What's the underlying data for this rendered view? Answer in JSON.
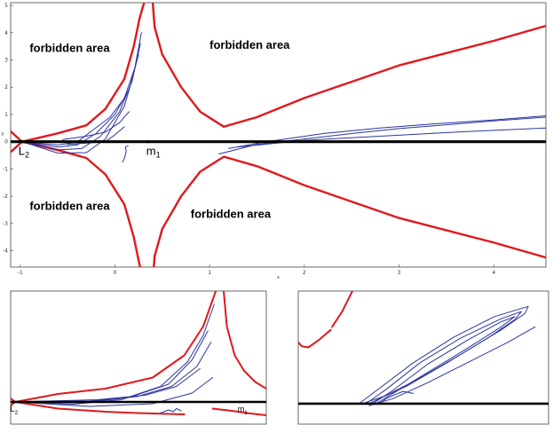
{
  "colors": {
    "boundary": "#e0191d",
    "orbit": "#2b35a0",
    "axis_line": "#000000",
    "frame": "#444444"
  },
  "chart_data": [
    {
      "type": "line",
      "panel": "top",
      "xlabel": "x",
      "ylabel": "y",
      "xlim": [
        -1.1,
        4.55
      ],
      "ylim": [
        -4.6,
        5.1
      ],
      "xticks": [
        "-1",
        "0",
        "1",
        "2",
        "3",
        "4"
      ],
      "yticks": [
        "5",
        "4",
        "3",
        "2",
        "1",
        "0",
        "-1",
        "-2",
        "-3",
        "-4"
      ],
      "regions": [
        "forbidden area",
        "forbidden area",
        "forbidden area",
        "forbidden area"
      ],
      "points": [
        {
          "name_main": "L",
          "name_sub": "2",
          "x": -0.98,
          "y": 0
        },
        {
          "name_main": "m",
          "name_sub": "1",
          "x": 0.35,
          "y": 0
        }
      ],
      "series": [
        {
          "name": "",
          "role": "zero-velocity curve",
          "x": [
            -1.1,
            -0.98,
            -0.6,
            -0.3,
            -0.1,
            0.1,
            0.2,
            0.26,
            0.3,
            0.31
          ],
          "y": [
            -0.38,
            0,
            0.31,
            0.6,
            1.2,
            2.3,
            3.5,
            4.5,
            5.0,
            5.1
          ]
        },
        {
          "name": "",
          "role": "zero-velocity curve",
          "x": [
            -1.1,
            -0.98,
            -0.6,
            -0.3,
            -0.1,
            0.1,
            0.2,
            0.26,
            0.3,
            0.31
          ],
          "y": [
            0.38,
            0,
            -0.31,
            -0.6,
            -1.2,
            -2.3,
            -3.5,
            -4.5,
            -5.0,
            -5.1
          ]
        },
        {
          "name": "",
          "role": "zero-velocity curve",
          "x": [
            0.4,
            0.42,
            0.5,
            0.7,
            0.9,
            1.15,
            1.5,
            2.0,
            3.0,
            4.0,
            4.55
          ],
          "y": [
            5.1,
            4.2,
            3.2,
            2.0,
            1.1,
            0.55,
            0.9,
            1.6,
            2.8,
            3.7,
            4.25
          ]
        },
        {
          "name": "",
          "role": "zero-velocity curve",
          "x": [
            0.4,
            0.42,
            0.5,
            0.7,
            0.9,
            1.15,
            1.5,
            2.0,
            3.0,
            4.0,
            4.55
          ],
          "y": [
            -5.1,
            -4.2,
            -3.2,
            -2.0,
            -1.1,
            -0.55,
            -0.9,
            -1.6,
            -2.8,
            -3.7,
            -4.25
          ]
        },
        {
          "name": "",
          "role": "orbit",
          "x": [
            -0.98,
            -0.6,
            -0.3,
            -0.1,
            0.1,
            0.2,
            0.28
          ],
          "y": [
            0,
            -0.42,
            -0.4,
            0.1,
            1.3,
            2.5,
            4.0
          ]
        },
        {
          "name": "",
          "role": "orbit",
          "x": [
            -0.98,
            -0.6,
            -0.35,
            -0.15,
            0.05,
            0.18,
            0.27
          ],
          "y": [
            0,
            -0.3,
            -0.25,
            0.2,
            1.1,
            2.2,
            3.6
          ]
        },
        {
          "name": "",
          "role": "orbit",
          "x": [
            -0.98,
            -0.6,
            -0.4,
            -0.2,
            0.0,
            0.15,
            0.25
          ],
          "y": [
            0,
            -0.2,
            -0.12,
            0.3,
            1.0,
            1.9,
            3.2
          ]
        },
        {
          "name": "",
          "role": "orbit",
          "x": [
            -0.98,
            -0.6,
            -0.4,
            -0.25,
            -0.05,
            0.1,
            0.22
          ],
          "y": [
            0,
            -0.12,
            -0.02,
            0.38,
            0.9,
            1.6,
            2.8
          ]
        },
        {
          "name": "",
          "role": "orbit",
          "x": [
            -0.55,
            -0.3,
            -0.1,
            0.05,
            0.15
          ],
          "y": [
            0.08,
            0.2,
            0.35,
            0.7,
            1.1
          ]
        },
        {
          "name": "",
          "role": "orbit",
          "x": [
            -0.5,
            -0.3,
            -0.1,
            0.0,
            0.1
          ],
          "y": [
            -0.1,
            -0.05,
            0.0,
            0.25,
            0.55
          ]
        },
        {
          "name": "",
          "role": "orbit",
          "x": [
            1.1,
            1.5,
            2.0,
            2.5,
            3.0,
            3.5,
            4.0,
            4.55
          ],
          "y": [
            -0.45,
            -0.1,
            0.1,
            0.3,
            0.48,
            0.62,
            0.76,
            0.9
          ]
        },
        {
          "name": "",
          "role": "orbit",
          "x": [
            1.2,
            1.6,
            2.2,
            2.8,
            3.4,
            4.0,
            4.55
          ],
          "y": [
            -0.25,
            0.0,
            0.3,
            0.5,
            0.66,
            0.8,
            0.95
          ]
        },
        {
          "name": "",
          "role": "orbit",
          "x": [
            1.3,
            2.0,
            2.8,
            3.6,
            4.55
          ],
          "y": [
            -0.2,
            0.05,
            0.2,
            0.35,
            0.5
          ]
        },
        {
          "name": "",
          "role": "orbit",
          "x": [
            0.08,
            0.1,
            0.12,
            0.11,
            0.14
          ],
          "y": [
            -0.75,
            -0.62,
            -0.35,
            -0.2,
            -0.15
          ]
        }
      ]
    },
    {
      "type": "line",
      "panel": "bottom-left",
      "xlabel": "",
      "ylabel": "",
      "xlim": [
        -1.0,
        0.62
      ],
      "ylim": [
        -0.5,
        2.5
      ],
      "points": [
        {
          "name_main": "L",
          "name_sub": "2",
          "x": -0.98,
          "y": 0
        },
        {
          "name_main": "m",
          "name_sub": "1",
          "x": 0.45,
          "y": 0
        }
      ],
      "series": [
        {
          "name": "",
          "role": "zero-velocity curve",
          "x": [
            -1.0,
            -0.97,
            -0.7,
            -0.4,
            -0.1,
            0.1,
            0.22,
            0.3
          ],
          "y": [
            -0.08,
            0,
            0.18,
            0.3,
            0.55,
            1.05,
            1.7,
            2.5
          ]
        },
        {
          "name": "",
          "role": "zero-velocity curve",
          "x": [
            -1.0,
            -0.97,
            -0.7,
            -0.4,
            -0.2,
            0.0,
            0.1
          ],
          "y": [
            0.08,
            0,
            -0.15,
            -0.22,
            -0.25,
            -0.27,
            -0.28
          ]
        },
        {
          "name": "",
          "role": "zero-velocity curve",
          "x": [
            0.35,
            0.37,
            0.42,
            0.48,
            0.55,
            0.62
          ],
          "y": [
            2.5,
            1.7,
            1.05,
            0.7,
            0.45,
            0.3
          ]
        },
        {
          "name": "",
          "role": "zero-velocity curve",
          "x": [
            0.28,
            0.4,
            0.52,
            0.62
          ],
          "y": [
            -0.15,
            -0.2,
            -0.26,
            -0.3
          ]
        },
        {
          "name": "",
          "role": "orbit",
          "x": [
            -0.98,
            -0.6,
            -0.3,
            -0.05,
            0.12,
            0.22,
            0.29
          ],
          "y": [
            0,
            -0.05,
            0.05,
            0.35,
            0.9,
            1.5,
            2.2
          ]
        },
        {
          "name": "",
          "role": "orbit",
          "x": [
            -0.98,
            -0.55,
            -0.25,
            0.0,
            0.15,
            0.25
          ],
          "y": [
            0,
            -0.02,
            0.1,
            0.4,
            0.95,
            1.6
          ]
        },
        {
          "name": "",
          "role": "orbit",
          "x": [
            -0.98,
            -0.5,
            -0.2,
            0.02,
            0.18,
            0.27
          ],
          "y": [
            0,
            0.02,
            0.12,
            0.35,
            0.8,
            1.35
          ]
        },
        {
          "name": "",
          "role": "orbit",
          "x": [
            -0.98,
            -0.45,
            -0.15,
            0.05,
            0.2
          ],
          "y": [
            0,
            0.05,
            0.15,
            0.35,
            0.75
          ]
        },
        {
          "name": "",
          "role": "orbit",
          "x": [
            -0.98,
            -0.5,
            -0.1,
            0.15,
            0.28
          ],
          "y": [
            0,
            -0.1,
            -0.04,
            0.2,
            0.55
          ]
        },
        {
          "name": "",
          "role": "orbit",
          "x": [
            -0.05,
            0.0,
            0.03,
            0.05,
            0.08
          ],
          "y": [
            -0.25,
            -0.18,
            -0.22,
            -0.15,
            -0.2
          ]
        }
      ]
    },
    {
      "type": "line",
      "panel": "bottom-right",
      "xlabel": "",
      "ylabel": "",
      "xlim": [
        0.9,
        4.6
      ],
      "ylim": [
        -0.2,
        1.1
      ],
      "series": [
        {
          "name": "",
          "role": "zero-velocity curve",
          "x": [
            0.9,
            0.95,
            1.05,
            1.2,
            1.38
          ],
          "y": [
            0.6,
            0.56,
            0.55,
            0.62,
            0.72
          ]
        },
        {
          "name": "",
          "role": "zero-velocity curve",
          "x": [
            1.4,
            1.55,
            1.7
          ],
          "y": [
            0.75,
            0.9,
            1.1
          ]
        },
        {
          "name": "",
          "role": "orbit",
          "x": [
            1.8,
            2.1,
            2.6,
            3.2,
            3.8,
            4.3,
            4.25,
            3.9,
            3.3,
            2.7,
            2.2,
            1.85
          ],
          "y": [
            0.0,
            0.15,
            0.4,
            0.65,
            0.85,
            0.95,
            0.88,
            0.72,
            0.48,
            0.25,
            0.08,
            0.0
          ]
        },
        {
          "name": "",
          "role": "orbit",
          "x": [
            1.9,
            2.2,
            2.7,
            3.3,
            3.9,
            4.2,
            4.1,
            3.7,
            3.1,
            2.5,
            2.1,
            1.95
          ],
          "y": [
            0.0,
            0.14,
            0.4,
            0.64,
            0.83,
            0.9,
            0.82,
            0.64,
            0.4,
            0.17,
            0.05,
            0.0
          ]
        },
        {
          "name": "",
          "role": "orbit",
          "x": [
            2.0,
            2.3,
            2.8,
            3.4,
            3.9,
            4.1,
            3.9,
            3.4,
            2.8,
            2.3,
            2.05
          ],
          "y": [
            0.0,
            0.13,
            0.38,
            0.62,
            0.8,
            0.85,
            0.75,
            0.54,
            0.3,
            0.1,
            0.0
          ]
        },
        {
          "name": "",
          "role": "orbit",
          "x": [
            1.95,
            2.3,
            2.8,
            3.4,
            4.0,
            4.4
          ],
          "y": [
            -0.02,
            0.05,
            0.2,
            0.4,
            0.6,
            0.75
          ]
        },
        {
          "name": "",
          "role": "orbit",
          "x": [
            2.1,
            2.2,
            2.3,
            2.45,
            2.6
          ],
          "y": [
            0.0,
            0.05,
            0.08,
            0.12,
            0.1
          ]
        }
      ]
    }
  ]
}
